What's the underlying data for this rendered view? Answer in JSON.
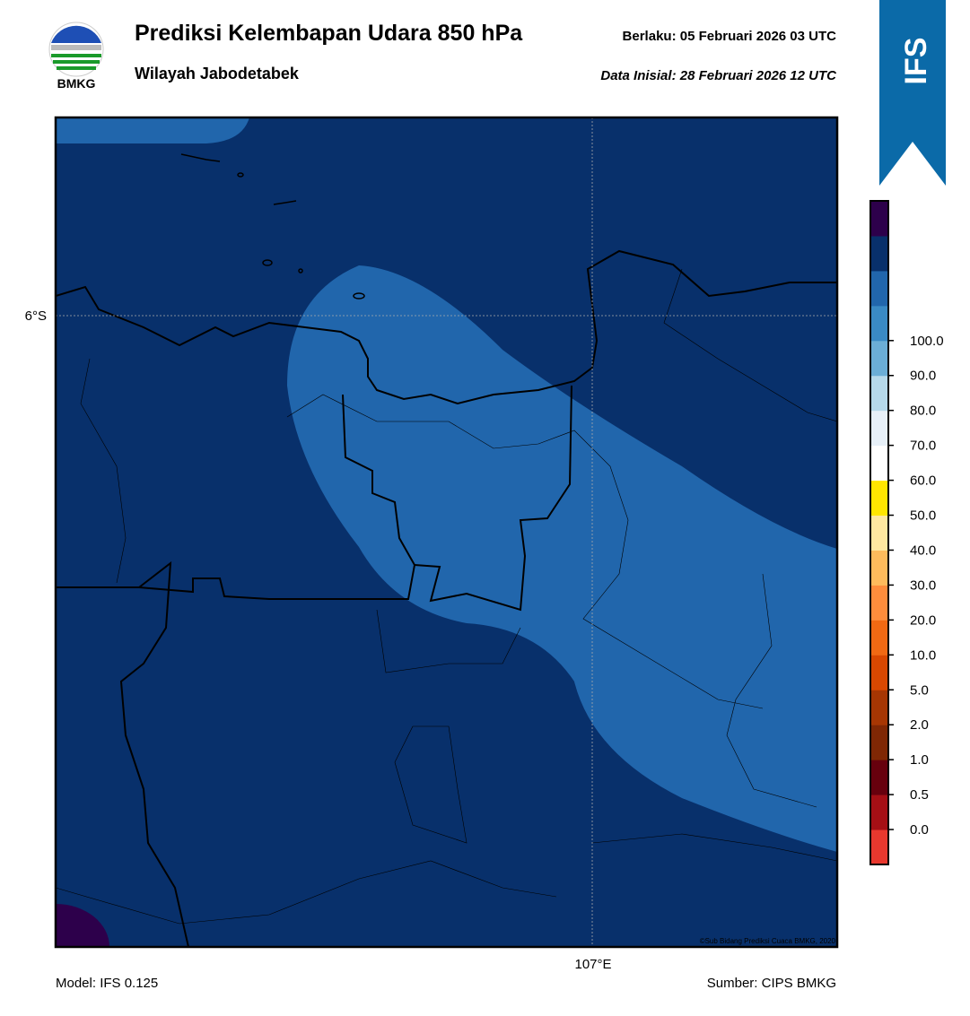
{
  "header": {
    "title": "Prediksi Kelembapan Udara 850 hPa",
    "valid": "Berlaku:  05 Februari 2026 03 UTC",
    "region": "Wilayah Jabodetabek",
    "initial": "Data Inisial:  28 Februari 2026 12 UTC",
    "logo_text": "BMKG",
    "badge": "IFS"
  },
  "map": {
    "lat_label": "6°S",
    "lon_label": "107°E",
    "credit": "©Sub Bidang Prediksi Cuaca BMKG, 2020"
  },
  "colorbar": {
    "labels": [
      "0.0",
      "0.5",
      "1.0",
      "2.0",
      "5.0",
      "10.0",
      "20.0",
      "30.0",
      "40.0",
      "50.0",
      "60.0",
      "70.0",
      "80.0",
      "90.0",
      "100.0"
    ],
    "colors": [
      "#e8382e",
      "#a50f15",
      "#67000d",
      "#7f2704",
      "#a63603",
      "#d94801",
      "#f16913",
      "#fd8d3c",
      "#fdbb5c",
      "#fee8a0",
      "#ffe600",
      "#ffffff",
      "#e7f0f8",
      "#b6d9ea",
      "#6baed6",
      "#3a8ac4",
      "#2166ac",
      "#08306b",
      "#2d004b"
    ]
  },
  "footer": {
    "model": "Model: IFS 0.125",
    "source": "Sumber: CIPS BMKG"
  }
}
